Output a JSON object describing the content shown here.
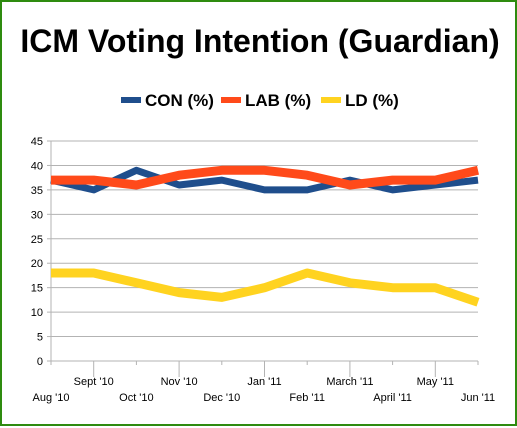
{
  "chart_data": {
    "type": "line",
    "title": "ICM Voting Intention (Guardian)",
    "xlabel": "",
    "ylabel": "",
    "ylim": [
      0,
      45
    ],
    "y_ticks": [
      "0",
      "5",
      "10",
      "15",
      "20",
      "25",
      "30",
      "35",
      "40",
      "45"
    ],
    "grid": "horizontal",
    "legend_position": "top",
    "categories": [
      "Aug '10",
      "Sept '10",
      "Oct '10",
      "Nov '10",
      "Dec '10",
      "Jan '11",
      "Feb '11",
      "March '11",
      "April '11",
      "May  '11",
      "Jun '11"
    ],
    "series": [
      {
        "name": "CON (%)",
        "color": "#1f4e8c",
        "values": [
          37,
          35,
          39,
          36,
          37,
          35,
          35,
          37,
          35,
          36,
          37
        ]
      },
      {
        "name": "LAB (%)",
        "color": "#ff4a1a",
        "values": [
          37,
          37,
          36,
          38,
          39,
          39,
          38,
          36,
          37,
          37,
          39
        ]
      },
      {
        "name": "LD (%)",
        "color": "#ffd320",
        "values": [
          18,
          18,
          16,
          14,
          13,
          15,
          18,
          16,
          15,
          15,
          12
        ]
      }
    ]
  }
}
